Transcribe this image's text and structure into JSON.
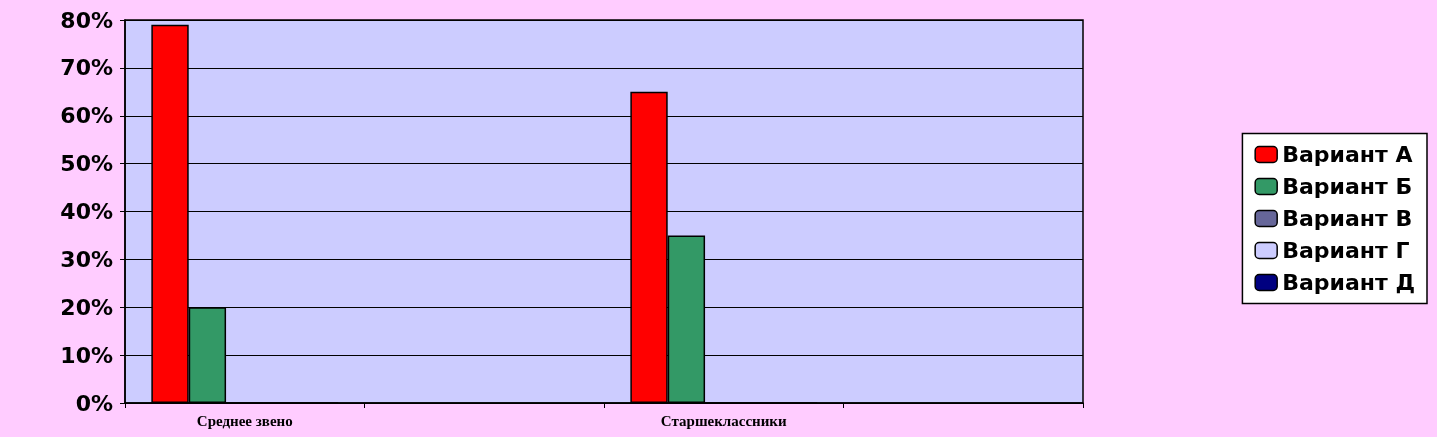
{
  "chart_data": {
    "type": "bar",
    "categories": [
      "Среднее звено",
      null,
      "Старшеклассники",
      null
    ],
    "series": [
      {
        "name": "Вариант А",
        "color": "#ff0000",
        "values": [
          79,
          null,
          65,
          null
        ]
      },
      {
        "name": "Вариант Б",
        "color": "#339966",
        "values": [
          20,
          null,
          35,
          null
        ]
      },
      {
        "name": "Вариант В",
        "color": "#666699",
        "values": [
          0,
          null,
          0,
          null
        ]
      },
      {
        "name": "Вариант Г",
        "color": "#ccccff",
        "values": [
          0,
          null,
          0,
          null
        ]
      },
      {
        "name": "Вариант Д",
        "color": "#000080",
        "values": [
          0,
          null,
          0,
          null
        ]
      }
    ],
    "ylim": [
      0,
      80
    ],
    "yticks": [
      {
        "value": 0,
        "label": "0%"
      },
      {
        "value": 10,
        "label": "10%"
      },
      {
        "value": 20,
        "label": "20%"
      },
      {
        "value": 30,
        "label": "30%"
      },
      {
        "value": 40,
        "label": "40%"
      },
      {
        "value": 50,
        "label": "50%"
      },
      {
        "value": 60,
        "label": "60%"
      },
      {
        "value": 70,
        "label": "70%"
      },
      {
        "value": 80,
        "label": "80%"
      }
    ],
    "grid": "y",
    "legend": "right"
  }
}
